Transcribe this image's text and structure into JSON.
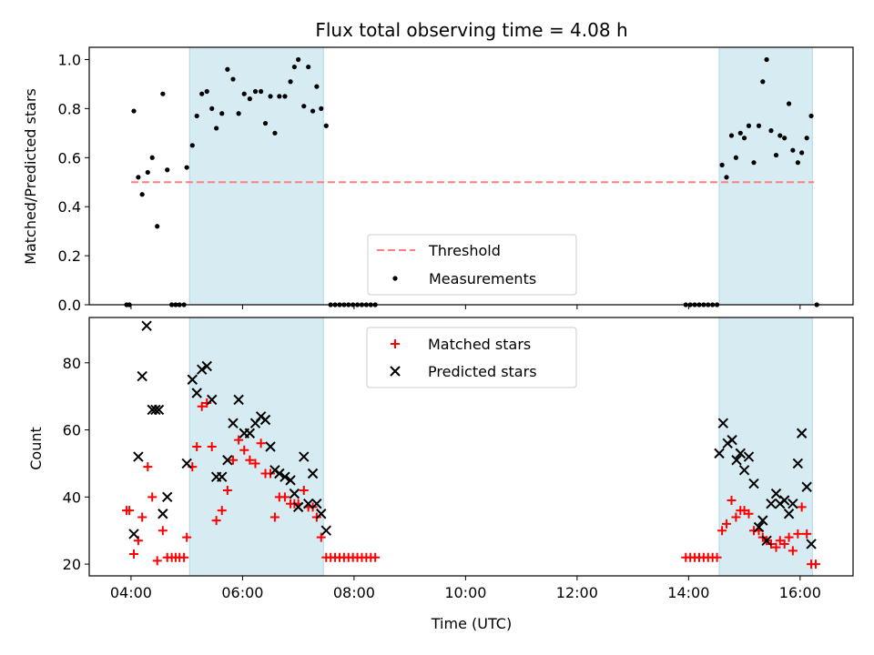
{
  "chart_data": {
    "type": "scatter",
    "title": "Flux total observing time = 4.08 h",
    "xlabel": "Time (UTC)",
    "x_unit": "hour_of_day_utc",
    "xlim": [
      3.25,
      16.95
    ],
    "xticks": [
      {
        "value": 4,
        "label": "04:00"
      },
      {
        "value": 6,
        "label": "06:00"
      },
      {
        "value": 8,
        "label": "08:00"
      },
      {
        "value": 10,
        "label": "10:00"
      },
      {
        "value": 12,
        "label": "12:00"
      },
      {
        "value": 14,
        "label": "14:00"
      },
      {
        "value": 16,
        "label": "16:00"
      }
    ],
    "shaded_intervals": [
      [
        5.05,
        7.45
      ],
      [
        14.55,
        16.22
      ]
    ],
    "shade_color": "#add8e6",
    "panels": [
      {
        "ylabel": "Matched/Predicted stars",
        "ylim": [
          0,
          1.05
        ],
        "yticks": [
          0.0,
          0.2,
          0.4,
          0.6,
          0.8,
          1.0
        ],
        "ytick_labels": [
          "0.0",
          "0.2",
          "0.4",
          "0.6",
          "0.8",
          "1.0"
        ],
        "legend": {
          "placement": "lower-center",
          "threshold_label": "Threshold",
          "measurements_label": "Measurements"
        },
        "threshold": {
          "value": 0.5,
          "x_range": [
            4.0,
            16.25
          ],
          "color": "#ff7f7f"
        },
        "measurements": {
          "color": "#000000",
          "points": [
            [
              3.92,
              0
            ],
            [
              3.97,
              0
            ],
            [
              4.05,
              0.79
            ],
            [
              4.13,
              0.52
            ],
            [
              4.2,
              0.45
            ],
            [
              4.3,
              0.54
            ],
            [
              4.38,
              0.6
            ],
            [
              4.47,
              0.32
            ],
            [
              4.57,
              0.86
            ],
            [
              4.65,
              0.55
            ],
            [
              4.73,
              0
            ],
            [
              4.8,
              0
            ],
            [
              4.87,
              0
            ],
            [
              4.95,
              0
            ],
            [
              5.0,
              0.56
            ],
            [
              5.1,
              0.65
            ],
            [
              5.18,
              0.77
            ],
            [
              5.27,
              0.86
            ],
            [
              5.36,
              0.87
            ],
            [
              5.45,
              0.8
            ],
            [
              5.53,
              0.72
            ],
            [
              5.63,
              0.78
            ],
            [
              5.73,
              0.96
            ],
            [
              5.83,
              0.92
            ],
            [
              5.93,
              0.78
            ],
            [
              6.03,
              0.86
            ],
            [
              6.13,
              0.84
            ],
            [
              6.23,
              0.87
            ],
            [
              6.33,
              0.87
            ],
            [
              6.41,
              0.74
            ],
            [
              6.5,
              0.85
            ],
            [
              6.58,
              0.7
            ],
            [
              6.66,
              0.85
            ],
            [
              6.76,
              0.85
            ],
            [
              6.86,
              0.91
            ],
            [
              6.93,
              0.97
            ],
            [
              7.0,
              1.0
            ],
            [
              7.1,
              0.81
            ],
            [
              7.18,
              0.97
            ],
            [
              7.26,
              0.79
            ],
            [
              7.33,
              0.89
            ],
            [
              7.41,
              0.8
            ],
            [
              7.5,
              0.73
            ],
            [
              7.58,
              0
            ],
            [
              7.66,
              0
            ],
            [
              7.74,
              0
            ],
            [
              7.82,
              0
            ],
            [
              7.9,
              0
            ],
            [
              7.98,
              0
            ],
            [
              8.06,
              0
            ],
            [
              8.14,
              0
            ],
            [
              8.22,
              0
            ],
            [
              8.3,
              0
            ],
            [
              8.38,
              0
            ],
            [
              13.95,
              0
            ],
            [
              14.03,
              0
            ],
            [
              14.11,
              0
            ],
            [
              14.19,
              0
            ],
            [
              14.27,
              0
            ],
            [
              14.35,
              0
            ],
            [
              14.43,
              0
            ],
            [
              14.51,
              0
            ],
            [
              14.6,
              0.57
            ],
            [
              14.68,
              0.52
            ],
            [
              14.77,
              0.69
            ],
            [
              14.85,
              0.6
            ],
            [
              14.93,
              0.7
            ],
            [
              15.0,
              0.68
            ],
            [
              15.08,
              0.73
            ],
            [
              15.17,
              0.58
            ],
            [
              15.26,
              0.73
            ],
            [
              15.33,
              0.91
            ],
            [
              15.4,
              1.0
            ],
            [
              15.48,
              0.71
            ],
            [
              15.57,
              0.61
            ],
            [
              15.64,
              0.69
            ],
            [
              15.72,
              0.68
            ],
            [
              15.8,
              0.82
            ],
            [
              15.87,
              0.63
            ],
            [
              15.96,
              0.58
            ],
            [
              16.03,
              0.62
            ],
            [
              16.12,
              0.68
            ],
            [
              16.2,
              0.77
            ],
            [
              16.3,
              0
            ]
          ]
        }
      },
      {
        "ylabel": "Count",
        "ylim": [
          16.5,
          93.5
        ],
        "yticks": [
          20,
          40,
          60,
          80
        ],
        "ytick_labels": [
          "20",
          "40",
          "60",
          "80"
        ],
        "legend": {
          "placement": "upper-center",
          "matched_label": "Matched stars",
          "predicted_label": "Predicted stars"
        },
        "matched_color": "#ff0000",
        "predicted_color": "#000000",
        "matched": [
          [
            3.92,
            36
          ],
          [
            3.97,
            36
          ],
          [
            4.05,
            23
          ],
          [
            4.13,
            27
          ],
          [
            4.2,
            34
          ],
          [
            4.3,
            49
          ],
          [
            4.38,
            40
          ],
          [
            4.47,
            21
          ],
          [
            4.57,
            30
          ],
          [
            4.65,
            22
          ],
          [
            4.73,
            22
          ],
          [
            4.8,
            22
          ],
          [
            4.87,
            22
          ],
          [
            4.95,
            22
          ],
          [
            5.0,
            28
          ],
          [
            5.1,
            49
          ],
          [
            5.18,
            55
          ],
          [
            5.27,
            67
          ],
          [
            5.36,
            68
          ],
          [
            5.45,
            55
          ],
          [
            5.53,
            33
          ],
          [
            5.63,
            36
          ],
          [
            5.73,
            42
          ],
          [
            5.83,
            51
          ],
          [
            5.93,
            57
          ],
          [
            6.03,
            54
          ],
          [
            6.13,
            51
          ],
          [
            6.23,
            50
          ],
          [
            6.33,
            56
          ],
          [
            6.41,
            47
          ],
          [
            6.5,
            47
          ],
          [
            6.58,
            34
          ],
          [
            6.66,
            40
          ],
          [
            6.76,
            40
          ],
          [
            6.86,
            38
          ],
          [
            6.93,
            38
          ],
          [
            7.0,
            38
          ],
          [
            7.1,
            42
          ],
          [
            7.18,
            37
          ],
          [
            7.26,
            37
          ],
          [
            7.33,
            34
          ],
          [
            7.41,
            28
          ],
          [
            7.5,
            22
          ],
          [
            7.58,
            22
          ],
          [
            7.66,
            22
          ],
          [
            7.74,
            22
          ],
          [
            7.82,
            22
          ],
          [
            7.9,
            22
          ],
          [
            7.98,
            22
          ],
          [
            8.06,
            22
          ],
          [
            8.14,
            22
          ],
          [
            8.22,
            22
          ],
          [
            8.3,
            22
          ],
          [
            8.38,
            22
          ],
          [
            13.95,
            22
          ],
          [
            14.03,
            22
          ],
          [
            14.11,
            22
          ],
          [
            14.19,
            22
          ],
          [
            14.27,
            22
          ],
          [
            14.35,
            22
          ],
          [
            14.43,
            22
          ],
          [
            14.51,
            22
          ],
          [
            14.6,
            30
          ],
          [
            14.68,
            32
          ],
          [
            14.77,
            39
          ],
          [
            14.85,
            34
          ],
          [
            14.93,
            36
          ],
          [
            15.0,
            36
          ],
          [
            15.08,
            35
          ],
          [
            15.17,
            30
          ],
          [
            15.26,
            30
          ],
          [
            15.33,
            28
          ],
          [
            15.4,
            27
          ],
          [
            15.48,
            26
          ],
          [
            15.57,
            25
          ],
          [
            15.64,
            27
          ],
          [
            15.72,
            26
          ],
          [
            15.8,
            28
          ],
          [
            15.87,
            24
          ],
          [
            15.96,
            29
          ],
          [
            16.03,
            37
          ],
          [
            16.12,
            29
          ],
          [
            16.2,
            20
          ],
          [
            16.28,
            20
          ]
        ],
        "predicted": [
          [
            4.05,
            29
          ],
          [
            4.13,
            52
          ],
          [
            4.2,
            76
          ],
          [
            4.28,
            91
          ],
          [
            4.38,
            66
          ],
          [
            4.44,
            66
          ],
          [
            4.5,
            66
          ],
          [
            4.57,
            35
          ],
          [
            4.65,
            40
          ],
          [
            5.0,
            50
          ],
          [
            5.1,
            75
          ],
          [
            5.18,
            71
          ],
          [
            5.27,
            78
          ],
          [
            5.36,
            79
          ],
          [
            5.45,
            69
          ],
          [
            5.53,
            46
          ],
          [
            5.63,
            46
          ],
          [
            5.73,
            51
          ],
          [
            5.83,
            62
          ],
          [
            5.93,
            69
          ],
          [
            6.03,
            59
          ],
          [
            6.13,
            59
          ],
          [
            6.23,
            62
          ],
          [
            6.33,
            64
          ],
          [
            6.41,
            63
          ],
          [
            6.5,
            55
          ],
          [
            6.58,
            48
          ],
          [
            6.66,
            47
          ],
          [
            6.76,
            46
          ],
          [
            6.86,
            45
          ],
          [
            6.93,
            41
          ],
          [
            7.0,
            37
          ],
          [
            7.1,
            52
          ],
          [
            7.18,
            38
          ],
          [
            7.26,
            47
          ],
          [
            7.33,
            38
          ],
          [
            7.41,
            35
          ],
          [
            7.5,
            30
          ],
          [
            14.55,
            53
          ],
          [
            14.62,
            62
          ],
          [
            14.7,
            56
          ],
          [
            14.78,
            57
          ],
          [
            14.86,
            51
          ],
          [
            14.93,
            53
          ],
          [
            15.0,
            48
          ],
          [
            15.08,
            52
          ],
          [
            15.17,
            44
          ],
          [
            15.26,
            31
          ],
          [
            15.33,
            33
          ],
          [
            15.4,
            27
          ],
          [
            15.48,
            38
          ],
          [
            15.57,
            41
          ],
          [
            15.64,
            38
          ],
          [
            15.72,
            39
          ],
          [
            15.8,
            35
          ],
          [
            15.87,
            38
          ],
          [
            15.96,
            50
          ],
          [
            16.03,
            59
          ],
          [
            16.12,
            43
          ],
          [
            16.2,
            26
          ]
        ]
      }
    ]
  }
}
